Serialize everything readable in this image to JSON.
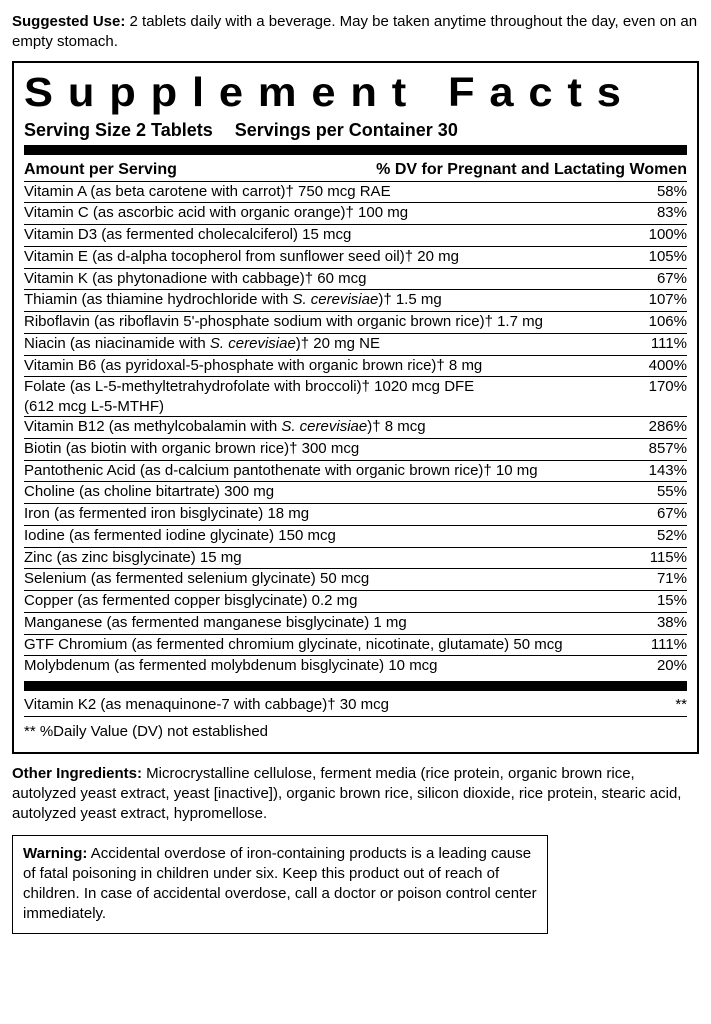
{
  "intro": {
    "label": "Suggested Use:",
    "text": " 2 tablets daily with a beverage. May be taken anytime throughout the day, even on an empty stomach."
  },
  "panel": {
    "title": "Supplement Facts",
    "serving_size_label": "Serving Size 2 Tablets",
    "servings_per_label": "Servings per Container 30",
    "head_left": "Amount per Serving",
    "head_right": "% DV for Pregnant and Lactating Women",
    "rows": [
      {
        "name": "Vitamin A  (as beta carotene with carrot)† 750 mcg RAE",
        "dv": "58%"
      },
      {
        "name": "Vitamin C (as ascorbic acid with organic orange)† 100 mg",
        "dv": "83%"
      },
      {
        "name": "Vitamin D3 (as fermented cholecalciferol) 15 mcg",
        "dv": "100%"
      },
      {
        "name": "Vitamin E (as d-alpha tocopherol from sunflower seed oil)† 20 mg",
        "dv": "105%"
      },
      {
        "name": "Vitamin K (as phytonadione with cabbage)† 60 mcg",
        "dv": "67%"
      },
      {
        "name": "Thiamin (as thiamine hydrochloride with <i>S. cerevisiae</i>)† 1.5 mg",
        "dv": "107%"
      },
      {
        "name": "Riboflavin (as riboflavin 5'-phosphate sodium with organic brown rice)† 1.7 mg",
        "dv": "106%"
      },
      {
        "name": "Niacin (as niacinamide with <i>S. cerevisiae</i>)† 20 mg NE",
        "dv": "111%"
      },
      {
        "name": "Vitamin B6 (as pyridoxal-5-phosphate with organic brown rice)† 8 mg",
        "dv": "400%"
      },
      {
        "name": "Folate (as L-5-methyltetrahydrofolate with broccoli)† 1020 mcg DFE",
        "dv": "170%",
        "sub": "(612 mcg L-5-MTHF)"
      },
      {
        "name": "Vitamin B12 (as methylcobalamin with <i>S. cerevisiae</i>)† 8 mcg",
        "dv": "286%"
      },
      {
        "name": "Biotin (as biotin with organic brown rice)† 300 mcg",
        "dv": "857%"
      },
      {
        "name": "Pantothenic Acid (as d-calcium pantothenate with organic brown rice)† 10 mg",
        "dv": "143%"
      },
      {
        "name": "Choline (as choline bitartrate) 300 mg",
        "dv": "55%"
      },
      {
        "name": "Iron (as fermented iron bisglycinate) 18 mg",
        "dv": "67%"
      },
      {
        "name": "Iodine (as fermented iodine glycinate) 150 mcg",
        "dv": "52%"
      },
      {
        "name": "Zinc (as zinc bisglycinate) 15 mg",
        "dv": "115%"
      },
      {
        "name": "Selenium (as fermented selenium glycinate) 50 mcg",
        "dv": "71%"
      },
      {
        "name": "Copper (as fermented copper bisglycinate) 0.2 mg",
        "dv": "15%"
      },
      {
        "name": "Manganese (as fermented manganese bisglycinate) 1 mg",
        "dv": "38%"
      },
      {
        "name": "GTF Chromium (as fermented chromium glycinate, nicotinate, glutamate) 50 mcg",
        "dv": "111%"
      },
      {
        "name": "Molybdenum (as fermented molybdenum bisglycinate) 10 mcg",
        "dv": "20%"
      }
    ],
    "rows2": [
      {
        "name": "Vitamin K2 (as menaquinone-7 with cabbage)† 30 mcg",
        "dv": "**"
      }
    ],
    "footnote": "** %Daily Value (DV) not established"
  },
  "other": {
    "label": "Other Ingredients:",
    "text": " Microcrystalline cellulose, ferment media (rice protein, organic brown rice, autolyzed yeast extract, yeast [inactive]), organic brown rice, silicon dioxide, rice protein, stearic acid, autolyzed yeast extract, hypromellose."
  },
  "warning": {
    "label": "Warning:",
    "text": " Accidental overdose of iron-containing products is a leading cause of fatal poisoning in children under six. Keep this product out of reach of children. In case of accidental overdose, call a doctor or poison control center immediately."
  }
}
